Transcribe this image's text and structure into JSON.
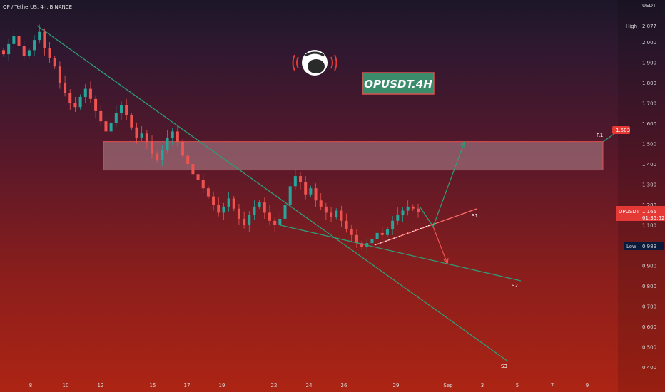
{
  "header": {
    "symbol_line": "OP / TetherUS, 4h, BINANCE"
  },
  "title_badge": "OPUSDT.4H",
  "colors": {
    "bull": "#26a69a",
    "bear": "#ef5350",
    "line": "#2e9e78",
    "zone_fill": "#c8a0a8",
    "zone_border": "#e05050",
    "badge_bg": "#3a8c6a",
    "badge_text": "#ffffff",
    "price_tag": "#e53935",
    "low_tag": "#0a1a3a"
  },
  "chart_data": {
    "type": "candlestick",
    "currency": "USDT",
    "x_ticks": [
      "8",
      "10",
      "12",
      "15",
      "17",
      "19",
      "22",
      "24",
      "26",
      "29",
      "Sep",
      "3",
      "5",
      "7",
      "9"
    ],
    "y_ticks": [
      "2.000",
      "1.900",
      "1.800",
      "1.700",
      "1.600",
      "1.500",
      "1.400",
      "1.300",
      "1.200",
      "1.100",
      "1.000",
      "0.900",
      "0.800",
      "0.700",
      "0.600",
      "0.500",
      "0.400"
    ],
    "high": {
      "label": "High",
      "value": "2.077"
    },
    "low": {
      "label": "Low",
      "value": "0.989"
    },
    "last_price": {
      "symbol": "OPUSDT",
      "value": "1.165",
      "countdown": "01:35:52"
    },
    "ylim": [
      0.38,
      2.1
    ],
    "levels": [
      {
        "name": "R1",
        "label": "1.503",
        "zone": [
          1.37,
          1.51
        ]
      },
      {
        "name": "S1"
      },
      {
        "name": "S2"
      },
      {
        "name": "S3"
      }
    ],
    "candles_note": "approximate OHLC path, Aug 8 → Aug 31",
    "closes": [
      1.94,
      1.99,
      2.03,
      1.98,
      1.93,
      1.96,
      2.01,
      2.05,
      1.97,
      1.92,
      1.88,
      1.8,
      1.75,
      1.7,
      1.68,
      1.73,
      1.77,
      1.72,
      1.66,
      1.61,
      1.56,
      1.6,
      1.65,
      1.69,
      1.64,
      1.58,
      1.53,
      1.55,
      1.51,
      1.45,
      1.42,
      1.47,
      1.53,
      1.56,
      1.51,
      1.44,
      1.4,
      1.35,
      1.32,
      1.28,
      1.24,
      1.2,
      1.16,
      1.19,
      1.23,
      1.18,
      1.13,
      1.1,
      1.15,
      1.19,
      1.21,
      1.16,
      1.12,
      1.1,
      1.13,
      1.2,
      1.29,
      1.34,
      1.31,
      1.25,
      1.28,
      1.22,
      1.19,
      1.16,
      1.14,
      1.17,
      1.12,
      1.08,
      1.05,
      1.01,
      0.99,
      1.01,
      1.03,
      1.06,
      1.05,
      1.08,
      1.12,
      1.15,
      1.17,
      1.19,
      1.18,
      1.165
    ]
  }
}
